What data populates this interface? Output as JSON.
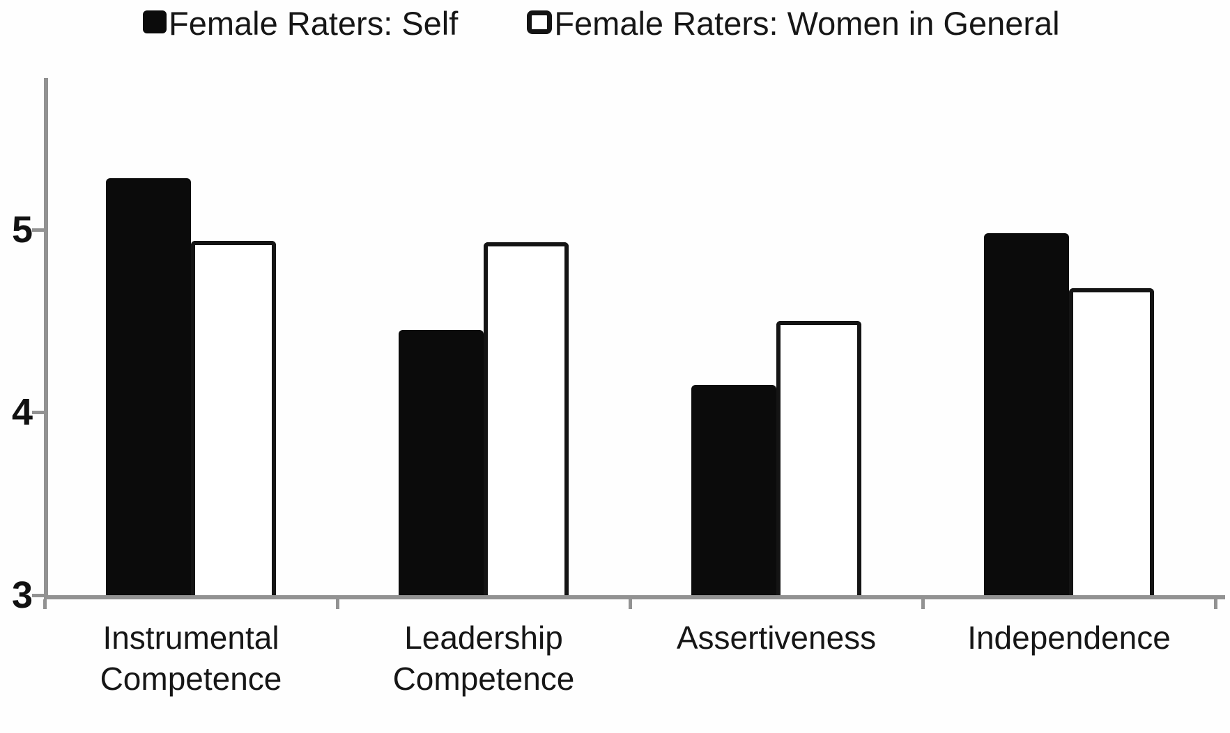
{
  "chart_data": {
    "type": "bar",
    "title": "",
    "xlabel": "",
    "ylabel": "",
    "categories": [
      "Instrumental\nCompetence",
      "Leadership\nCompetence",
      "Assertiveness",
      "Independence"
    ],
    "series": [
      {
        "name": "Female Raters: Self",
        "style": "solid-black",
        "values": [
          5.28,
          4.45,
          4.15,
          4.98
        ]
      },
      {
        "name": "Female Raters: Women in General",
        "style": "white-outlined",
        "values": [
          4.94,
          4.93,
          4.5,
          4.68
        ]
      }
    ],
    "ylim": [
      3,
      5.83
    ],
    "yticks": [
      3,
      4,
      5
    ],
    "grid": false,
    "legend_position": "top",
    "colors": {
      "bar_black": "#0b0b0b",
      "bar_white_fill": "#ffffff",
      "bar_outline": "#141414",
      "axis": "#929292",
      "text": "#161616"
    }
  }
}
